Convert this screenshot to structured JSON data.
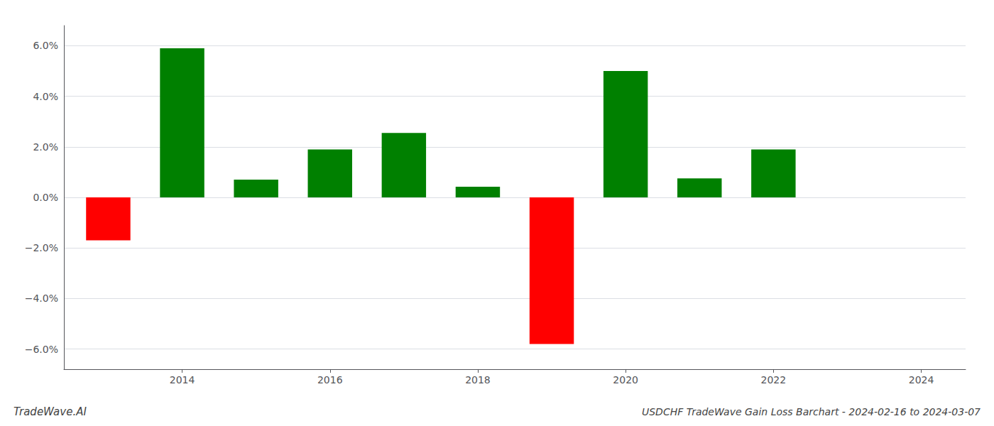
{
  "chart_data": {
    "type": "bar",
    "title": "USDCHF TradeWave Gain Loss Barchart - 2024-02-16 to 2024-03-07",
    "annotations": [
      "TradeWave.AI"
    ],
    "x": [
      2013,
      2014,
      2015,
      2016,
      2017,
      2018,
      2019,
      2020,
      2021,
      2022,
      2023
    ],
    "values": [
      -1.7,
      5.9,
      0.7,
      1.9,
      2.55,
      0.42,
      -5.8,
      5.0,
      0.75,
      1.9,
      0.0
    ],
    "colors": [
      "red",
      "green",
      "green",
      "green",
      "green",
      "green",
      "red",
      "green",
      "green",
      "green",
      "green"
    ],
    "xlim": [
      2012.4,
      2024.6
    ],
    "xticks": [
      2014,
      2016,
      2018,
      2020,
      2022,
      2024
    ],
    "ylim": [
      -6.8,
      6.8
    ],
    "yticks": [
      {
        "value": -6.0,
        "label": "−6.0%"
      },
      {
        "value": -4.0,
        "label": "−4.0%"
      },
      {
        "value": -2.0,
        "label": "−2.0%"
      },
      {
        "value": 0.0,
        "label": "0.0%"
      },
      {
        "value": 2.0,
        "label": "2.0%"
      },
      {
        "value": 4.0,
        "label": "4.0%"
      },
      {
        "value": 6.0,
        "label": "6.0%"
      }
    ],
    "grid": true
  }
}
